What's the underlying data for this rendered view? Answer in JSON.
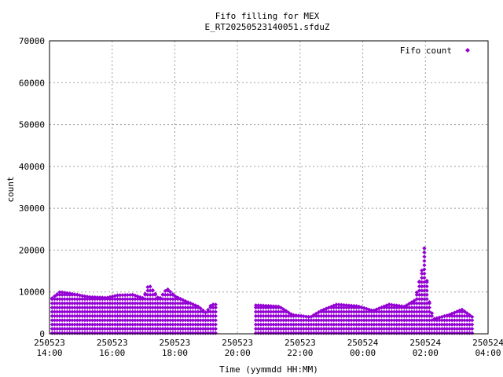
{
  "chart_data": {
    "type": "scatter",
    "title": "Fifo filling for MEX",
    "subtitle": "E_RT20250523140051.sfduZ",
    "xlabel": "Time (yymmdd HH:MM)",
    "ylabel": "count",
    "xlim": [
      "2025-05-23 14:00",
      "2025-05-24 04:00"
    ],
    "ylim": [
      0,
      70000
    ],
    "yticks": [
      "0",
      "10000",
      "20000",
      "30000",
      "40000",
      "50000",
      "60000",
      "70000"
    ],
    "xticks": [
      {
        "date": "250523",
        "time": "14:00"
      },
      {
        "date": "250523",
        "time": "16:00"
      },
      {
        "date": "250523",
        "time": "18:00"
      },
      {
        "date": "250523",
        "time": "20:00"
      },
      {
        "date": "250523",
        "time": "22:00"
      },
      {
        "date": "250524",
        "time": "00:00"
      },
      {
        "date": "250524",
        "time": "02:00"
      },
      {
        "date": "250524",
        "time": "04:00"
      }
    ],
    "grid": true,
    "legend_position": "top-right",
    "series": [
      {
        "name": "Fifo count",
        "color": "#9400d3",
        "marker": "diamond",
        "envelope_points": [
          {
            "x": "2025-05-23 14:05",
            "y": 8500
          },
          {
            "x": "2025-05-23 14:20",
            "y": 10000
          },
          {
            "x": "2025-05-23 14:45",
            "y": 9500
          },
          {
            "x": "2025-05-23 15:15",
            "y": 8800
          },
          {
            "x": "2025-05-23 15:50",
            "y": 8600
          },
          {
            "x": "2025-05-23 16:10",
            "y": 9200
          },
          {
            "x": "2025-05-23 16:40",
            "y": 9300
          },
          {
            "x": "2025-05-23 17:00",
            "y": 8500
          },
          {
            "x": "2025-05-23 17:10",
            "y": 11800
          },
          {
            "x": "2025-05-23 17:30",
            "y": 8200
          },
          {
            "x": "2025-05-23 17:45",
            "y": 10800
          },
          {
            "x": "2025-05-23 18:00",
            "y": 9000
          },
          {
            "x": "2025-05-23 18:20",
            "y": 7800
          },
          {
            "x": "2025-05-23 18:45",
            "y": 6500
          },
          {
            "x": "2025-05-23 19:00",
            "y": 5000
          },
          {
            "x": "2025-05-23 19:10",
            "y": 7000
          },
          {
            "x": "2025-05-23 20:40",
            "y": 6800
          },
          {
            "x": "2025-05-23 21:20",
            "y": 6500
          },
          {
            "x": "2025-05-23 21:45",
            "y": 4500
          },
          {
            "x": "2025-05-23 22:20",
            "y": 4000
          },
          {
            "x": "2025-05-23 22:40",
            "y": 5500
          },
          {
            "x": "2025-05-23 23:10",
            "y": 7000
          },
          {
            "x": "2025-05-23 23:50",
            "y": 6600
          },
          {
            "x": "2025-05-24 00:20",
            "y": 5500
          },
          {
            "x": "2025-05-24 00:50",
            "y": 7000
          },
          {
            "x": "2025-05-24 01:20",
            "y": 6500
          },
          {
            "x": "2025-05-24 01:40",
            "y": 8000
          },
          {
            "x": "2025-05-24 01:53",
            "y": 15000
          },
          {
            "x": "2025-05-24 01:58",
            "y": 20500
          },
          {
            "x": "2025-05-24 02:05",
            "y": 9000
          },
          {
            "x": "2025-05-24 02:15",
            "y": 3500
          },
          {
            "x": "2025-05-24 02:45",
            "y": 4500
          },
          {
            "x": "2025-05-24 03:10",
            "y": 5800
          },
          {
            "x": "2025-05-24 03:30",
            "y": 4000
          }
        ],
        "gaps": [
          [
            "2025-05-23 19:20",
            "2025-05-23 20:35"
          ]
        ]
      }
    ]
  }
}
